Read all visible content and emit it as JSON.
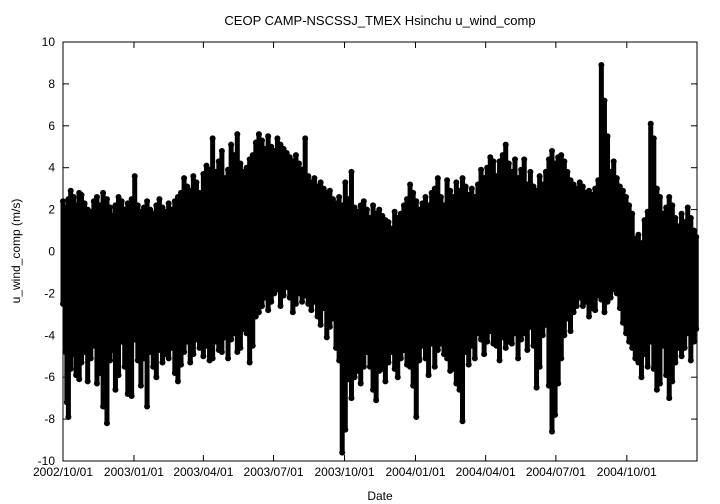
{
  "chart_data": {
    "type": "scatter",
    "title": "CEOP CAMP-NSCSSJ_TMEX Hsinchu  u_wind_comp",
    "xlabel": "Date",
    "ylabel": "u_wind_comp (m/s)",
    "x_range": [
      "2002-10-01",
      "2004-12-31"
    ],
    "ylim": [
      -10,
      10
    ],
    "y_ticks": [
      -10,
      -8,
      -6,
      -4,
      -2,
      0,
      2,
      4,
      6,
      8,
      10
    ],
    "x_ticks": [
      {
        "date": "2002-10-01",
        "label": "2002/10/01"
      },
      {
        "date": "2003-01-01",
        "label": "2003/01/01"
      },
      {
        "date": "2003-04-01",
        "label": "2003/04/01"
      },
      {
        "date": "2003-07-01",
        "label": "2003/07/01"
      },
      {
        "date": "2003-10-01",
        "label": "2003/10/01"
      },
      {
        "date": "2004-01-01",
        "label": "2004/01/01"
      },
      {
        "date": "2004-04-01",
        "label": "2004/04/01"
      },
      {
        "date": "2004-07-01",
        "label": "2004/07/01"
      },
      {
        "date": "2004-10-01",
        "label": "2004/10/01"
      }
    ],
    "grid": false,
    "legend": "none",
    "marker": "filled-circle",
    "connected": true,
    "color": "#000000",
    "series": [
      {
        "x": [
          "2002-10-01",
          "2002-10-04",
          "2002-10-06",
          "2002-10-08",
          "2002-10-11",
          "2002-10-15",
          "2002-10-18",
          "2002-10-22",
          "2002-10-25",
          "2002-10-29",
          "2002-11-02",
          "2002-11-06",
          "2002-11-10",
          "2002-11-14",
          "2002-11-18",
          "2002-11-22",
          "2002-11-27",
          "2002-12-01",
          "2002-12-05",
          "2002-12-08",
          "2002-12-12",
          "2002-12-16",
          "2002-12-20",
          "2002-12-24",
          "2002-12-29",
          "2003-01-02",
          "2003-01-06",
          "2003-01-10",
          "2003-01-14",
          "2003-01-18",
          "2003-01-22",
          "2003-01-26",
          "2003-01-30",
          "2003-02-03",
          "2003-02-07",
          "2003-02-11",
          "2003-02-15",
          "2003-02-19",
          "2003-02-23",
          "2003-02-27",
          "2003-03-03",
          "2003-03-07",
          "2003-03-11",
          "2003-03-15",
          "2003-03-19",
          "2003-03-23",
          "2003-03-27",
          "2003-04-01",
          "2003-04-05",
          "2003-04-09",
          "2003-04-13",
          "2003-04-17",
          "2003-04-21",
          "2003-04-25",
          "2003-04-29",
          "2003-05-03",
          "2003-05-07",
          "2003-05-11",
          "2003-05-15",
          "2003-05-19",
          "2003-05-23",
          "2003-05-27",
          "2003-05-31",
          "2003-06-04",
          "2003-06-08",
          "2003-06-12",
          "2003-06-16",
          "2003-06-20",
          "2003-06-24",
          "2003-06-28",
          "2003-07-02",
          "2003-07-06",
          "2003-07-10",
          "2003-07-14",
          "2003-07-18",
          "2003-07-22",
          "2003-07-26",
          "2003-07-30",
          "2003-08-03",
          "2003-08-07",
          "2003-08-11",
          "2003-08-15",
          "2003-08-19",
          "2003-08-23",
          "2003-08-27",
          "2003-08-31",
          "2003-09-04",
          "2003-09-08",
          "2003-09-12",
          "2003-09-16",
          "2003-09-20",
          "2003-09-24",
          "2003-09-28",
          "2003-10-02",
          "2003-10-06",
          "2003-10-10",
          "2003-10-14",
          "2003-10-18",
          "2003-10-22",
          "2003-10-26",
          "2003-10-30",
          "2003-11-03",
          "2003-11-07",
          "2003-11-11",
          "2003-11-15",
          "2003-11-19",
          "2003-11-23",
          "2003-11-27",
          "2003-12-01",
          "2003-12-05",
          "2003-12-09",
          "2003-12-13",
          "2003-12-17",
          "2003-12-21",
          "2003-12-25",
          "2003-12-29",
          "2004-01-02",
          "2004-01-06",
          "2004-01-10",
          "2004-01-14",
          "2004-01-18",
          "2004-01-22",
          "2004-01-26",
          "2004-01-30",
          "2004-02-03",
          "2004-02-07",
          "2004-02-11",
          "2004-02-15",
          "2004-02-19",
          "2004-02-23",
          "2004-02-27",
          "2004-03-02",
          "2004-03-06",
          "2004-03-10",
          "2004-03-14",
          "2004-03-18",
          "2004-03-22",
          "2004-03-26",
          "2004-03-30",
          "2004-04-03",
          "2004-04-07",
          "2004-04-11",
          "2004-04-15",
          "2004-04-19",
          "2004-04-23",
          "2004-04-27",
          "2004-05-01",
          "2004-05-05",
          "2004-05-09",
          "2004-05-13",
          "2004-05-17",
          "2004-05-21",
          "2004-05-25",
          "2004-05-29",
          "2004-06-02",
          "2004-06-06",
          "2004-06-10",
          "2004-06-14",
          "2004-06-18",
          "2004-06-22",
          "2004-06-26",
          "2004-06-30",
          "2004-07-04",
          "2004-07-08",
          "2004-07-12",
          "2004-07-16",
          "2004-07-20",
          "2004-07-24",
          "2004-07-28",
          "2004-08-01",
          "2004-08-05",
          "2004-08-09",
          "2004-08-13",
          "2004-08-17",
          "2004-08-21",
          "2004-08-25",
          "2004-08-29",
          "2004-09-02",
          "2004-09-06",
          "2004-09-10",
          "2004-09-14",
          "2004-09-18",
          "2004-09-22",
          "2004-09-26",
          "2004-09-30",
          "2004-10-04",
          "2004-10-08",
          "2004-10-12",
          "2004-10-16",
          "2004-10-20",
          "2004-10-24",
          "2004-10-28",
          "2004-11-01",
          "2004-11-05",
          "2004-11-09",
          "2004-11-13",
          "2004-11-17",
          "2004-11-21",
          "2004-11-25",
          "2004-11-29",
          "2004-12-03",
          "2004-12-07",
          "2004-12-11",
          "2004-12-15",
          "2004-12-19",
          "2004-12-23",
          "2004-12-27",
          "2004-12-30"
        ],
        "y_max": [
          2.4,
          2.1,
          1.8,
          2.5,
          2.9,
          2.6,
          2.2,
          2.8,
          2.7,
          2.3,
          2.0,
          1.9,
          2.4,
          2.6,
          2.2,
          2.8,
          2.5,
          2.1,
          1.7,
          2.2,
          2.6,
          2.4,
          2.0,
          2.3,
          2.5,
          3.6,
          2.2,
          1.9,
          2.1,
          2.4,
          2.0,
          1.8,
          2.2,
          2.5,
          2.1,
          1.9,
          2.3,
          2.0,
          2.4,
          2.6,
          2.8,
          3.5,
          3.1,
          2.9,
          3.6,
          3.3,
          2.8,
          3.7,
          4.1,
          3.9,
          5.4,
          3.8,
          4.3,
          4.8,
          3.5,
          3.9,
          5.1,
          4.6,
          5.6,
          4.2,
          3.8,
          4.0,
          4.4,
          4.6,
          5.2,
          5.6,
          5.3,
          4.9,
          5.5,
          5.0,
          4.8,
          5.4,
          5.1,
          4.9,
          4.7,
          4.5,
          4.3,
          4.6,
          4.2,
          3.9,
          5.4,
          3.6,
          3.3,
          3.5,
          3.1,
          3.3,
          3.0,
          2.8,
          2.9,
          2.5,
          2.3,
          2.6,
          2.2,
          3.3,
          2.5,
          3.8,
          2.1,
          1.9,
          2.2,
          2.4,
          2.0,
          1.6,
          2.2,
          1.8,
          2.0,
          1.7,
          1.5,
          1.4,
          1.1,
          1.9,
          1.6,
          1.8,
          2.2,
          2.5,
          3.2,
          2.8,
          2.4,
          2.0,
          2.3,
          2.6,
          2.2,
          2.8,
          3.0,
          3.5,
          2.6,
          2.2,
          3.4,
          2.9,
          2.6,
          3.3,
          2.9,
          3.5,
          3.1,
          2.7,
          3.0,
          2.6,
          3.2,
          3.9,
          3.5,
          4.0,
          4.5,
          4.3,
          3.6,
          4.3,
          4.6,
          5.1,
          4.2,
          3.8,
          4.4,
          3.5,
          3.9,
          4.4,
          3.2,
          3.8,
          3.1,
          2.9,
          3.6,
          3.2,
          3.8,
          4.4,
          4.8,
          4.2,
          4.5,
          4.6,
          4.3,
          3.8,
          3.4,
          3.2,
          3.0,
          3.3,
          3.1,
          2.8,
          2.9,
          2.7,
          3.0,
          3.4,
          8.9,
          7.2,
          5.5,
          3.8,
          4.3,
          3.5,
          3.1,
          2.9,
          2.6,
          2.2,
          1.8,
          0.6,
          0.8,
          0.4,
          1.5,
          1.9,
          6.1,
          5.4,
          3.0,
          2.6,
          1.8,
          2.1,
          2.6,
          2.2,
          1.6,
          1.2,
          1.8,
          1.4,
          2.1,
          1.6,
          1.0,
          0.7
        ],
        "y_min": [
          -2.5,
          -4.8,
          -7.2,
          -7.9,
          -5.6,
          -4.9,
          -5.9,
          -6.1,
          -5.3,
          -4.8,
          -6.2,
          -5.1,
          -4.5,
          -6.3,
          -5.8,
          -7.4,
          -8.2,
          -5.2,
          -4.7,
          -6.6,
          -5.9,
          -4.3,
          -5.5,
          -6.8,
          -6.9,
          -4.2,
          -5.2,
          -6.4,
          -5.1,
          -7.4,
          -4.8,
          -5.5,
          -6.0,
          -4.7,
          -5.3,
          -4.9,
          -5.1,
          -4.6,
          -5.8,
          -6.2,
          -5.4,
          -4.8,
          -4.3,
          -5.3,
          -4.9,
          -4.2,
          -4.6,
          -5.0,
          -4.5,
          -5.2,
          -5.1,
          -4.3,
          -4.7,
          -4.8,
          -4.1,
          -5.1,
          -4.2,
          -3.9,
          -4.8,
          -4.6,
          -3.7,
          -3.9,
          -5.3,
          -4.5,
          -3.1,
          -2.9,
          -2.6,
          -2.2,
          -2.8,
          -2.4,
          -2.0,
          -1.8,
          -2.6,
          -2.1,
          -1.7,
          -2.2,
          -2.9,
          -2.5,
          -2.0,
          -2.4,
          -2.1,
          -2.5,
          -2.8,
          -2.4,
          -3.1,
          -3.5,
          -2.7,
          -4.1,
          -3.6,
          -3.2,
          -4.6,
          -5.2,
          -9.6,
          -8.5,
          -6.1,
          -7.0,
          -6.0,
          -5.7,
          -6.3,
          -5.5,
          -4.8,
          -5.5,
          -6.6,
          -7.1,
          -5.7,
          -5.6,
          -6.2,
          -5.3,
          -4.8,
          -5.6,
          -6.0,
          -5.1,
          -4.7,
          -5.4,
          -5.5,
          -6.4,
          -7.9,
          -5.2,
          -4.5,
          -5.1,
          -5.9,
          -4.4,
          -5.5,
          -4.7,
          -4.4,
          -4.9,
          -5.1,
          -5.7,
          -5.6,
          -6.3,
          -6.6,
          -8.1,
          -4.8,
          -5.4,
          -4.5,
          -5.1,
          -3.9,
          -4.2,
          -4.9,
          -4.3,
          -3.8,
          -4.4,
          -4.5,
          -5.2,
          -4.1,
          -4.6,
          -4.3,
          -4.4,
          -3.9,
          -5.1,
          -4.2,
          -3.9,
          -4.7,
          -3.6,
          -4.5,
          -6.5,
          -5.5,
          -4.0,
          -3.5,
          -6.4,
          -8.6,
          -7.8,
          -6.3,
          -5.1,
          -4.0,
          -3.2,
          -3.8,
          -2.9,
          -2.6,
          -2.2,
          -2.6,
          -2.4,
          -3.1,
          -2.7,
          -2.8,
          -2.1,
          -2.3,
          -2.9,
          -2.4,
          -2.2,
          -1.8,
          -2.0,
          -2.7,
          -3.4,
          -3.9,
          -4.3,
          -4.6,
          -5.1,
          -5.3,
          -6.0,
          -4.9,
          -5.5,
          -4.3,
          -5.6,
          -6.6,
          -6.3,
          -4.5,
          -5.9,
          -7.0,
          -6.2,
          -5.3,
          -4.6,
          -5.0,
          -4.6,
          -3.9,
          -5.2,
          -4.3,
          -3.7,
          -4.1,
          -5.4
        ]
      }
    ]
  }
}
